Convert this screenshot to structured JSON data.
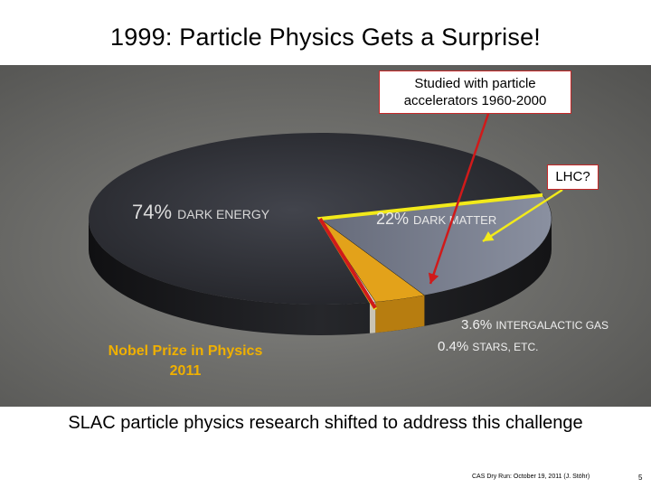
{
  "slide": {
    "title": "1999: Particle Physics Gets a Surprise!",
    "subtitle": "SLAC particle physics research shifted to address this challenge",
    "footer": "CAS Dry Run: October 19, 2011 (J. Stöhr)",
    "page_number": "5"
  },
  "annotations": {
    "accelerators_line1": "Studied with particle",
    "accelerators_line2": "accelerators 1960-2000",
    "lhc": "LHC?",
    "nobel_line1": "Nobel Prize in Physics",
    "nobel_line2": "2011"
  },
  "colors": {
    "callout_border": "#c62828",
    "nobel_text": "#f0b000",
    "highlight_yellow": "#f2ea1a",
    "arrow_red": "#d01a1a"
  },
  "chart_data": {
    "type": "pie",
    "style": "3d",
    "title": "",
    "slices": [
      {
        "label": "DARK ENERGY",
        "percent_label": "74%",
        "value": 74
      },
      {
        "label": "DARK MATTER",
        "percent_label": "22%",
        "value": 22
      },
      {
        "label": "INTERGALACTIC GAS",
        "percent_label": "3.6%",
        "value": 3.6
      },
      {
        "label": "STARS, ETC.",
        "percent_label": "0.4%",
        "value": 0.4
      }
    ]
  }
}
